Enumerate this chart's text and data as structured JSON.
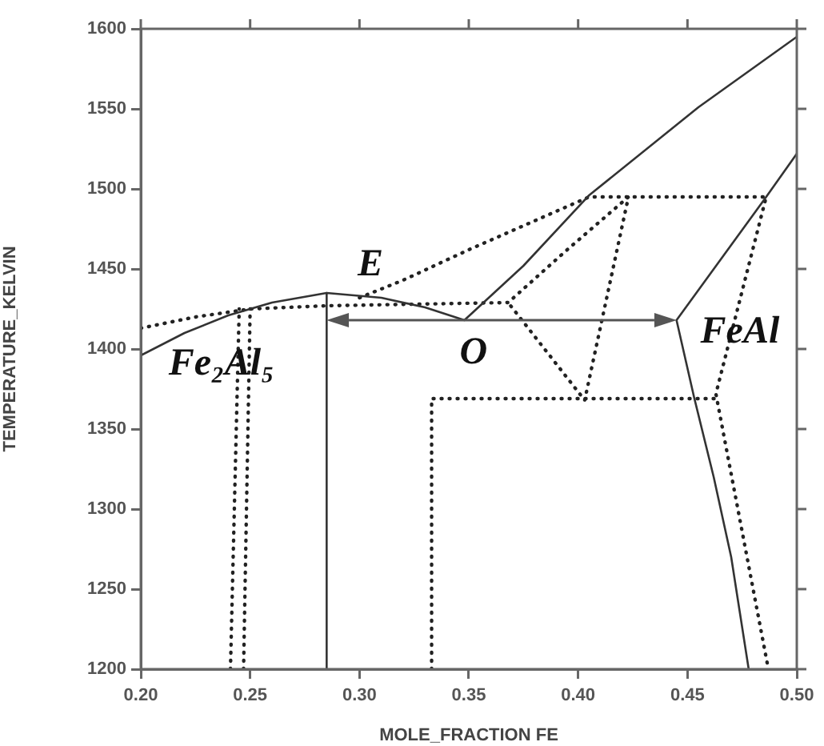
{
  "chart_data": {
    "type": "line",
    "xlabel": "MOLE_FRACTION FE",
    "ylabel": "TEMPERATURE_KELVIN",
    "xlim": [
      0.2,
      0.5
    ],
    "xticks": [
      {
        "value": 0.2,
        "label": "0.20"
      },
      {
        "value": 0.25,
        "label": "0.25"
      },
      {
        "value": 0.3,
        "label": "0.30"
      },
      {
        "value": 0.35,
        "label": "0.35"
      },
      {
        "value": 0.4,
        "label": "0.40"
      },
      {
        "value": 0.45,
        "label": "0.45"
      },
      {
        "value": 0.5,
        "label": "0.50"
      }
    ],
    "ylim": [
      1200,
      1600
    ],
    "yticks": [
      1200,
      1250,
      1300,
      1350,
      1400,
      1450,
      1500,
      1550,
      1600
    ],
    "grid": false,
    "legend": false,
    "marker": "none",
    "series": [
      {
        "color": "#333333",
        "line_style": "solid",
        "x": [
          0.2,
          0.22,
          0.24,
          0.26,
          0.285,
          0.31,
          0.33,
          0.348,
          0.375,
          0.405,
          0.455,
          0.5
        ],
        "values": [
          1396,
          1410,
          1421,
          1429,
          1435,
          1432,
          1426,
          1418,
          1452,
          1496,
          1551,
          1595
        ]
      },
      {
        "color": "#333333",
        "line_style": "solid",
        "x": [
          0.5,
          0.486,
          0.445,
          0.453,
          0.462,
          0.47,
          0.478
        ],
        "values": [
          1522,
          1495,
          1418,
          1370,
          1320,
          1270,
          1200
        ]
      },
      {
        "color": "#333333",
        "line_style": "solid",
        "x": [
          0.285,
          0.285
        ],
        "values": [
          1200,
          1435
        ]
      },
      {
        "color": "#222222",
        "line_style": "dotted",
        "x": [
          0.2,
          0.225,
          0.25,
          0.285,
          0.368,
          0.395,
          0.423,
          0.403,
          0.368
        ],
        "values": [
          1413,
          1420,
          1425,
          1427,
          1429,
          1462,
          1495,
          1368,
          1429
        ]
      },
      {
        "color": "#222222",
        "line_style": "dotted",
        "x": [
          0.3,
          0.32,
          0.35,
          0.38,
          0.405,
          0.486,
          0.463,
          0.487
        ],
        "values": [
          1432,
          1443,
          1462,
          1480,
          1495,
          1495,
          1372,
          1200
        ]
      },
      {
        "color": "#222222",
        "line_style": "dotted",
        "x": [
          0.333,
          0.333,
          0.463
        ],
        "values": [
          1200,
          1369,
          1369
        ]
      },
      {
        "color": "#222222",
        "line_style": "dotted",
        "x": [
          0.241,
          0.245
        ],
        "values": [
          1200,
          1425
        ]
      },
      {
        "color": "#222222",
        "line_style": "dotted",
        "x": [
          0.247,
          0.25
        ],
        "values": [
          1200,
          1425
        ]
      }
    ],
    "annotations": [
      "E",
      "O",
      {
        "text": "FeAl",
        "x": 0.474,
        "y": 1410
      },
      "Fe₂Al₅"
    ]
  }
}
